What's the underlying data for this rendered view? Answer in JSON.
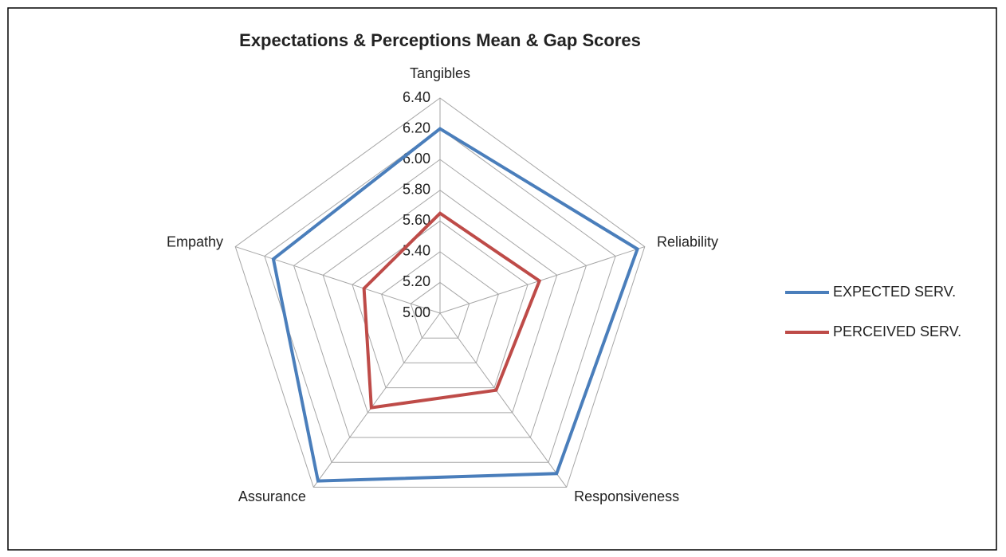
{
  "chart_data": {
    "type": "radar",
    "title": "Expectations & Perceptions Mean & Gap Scores",
    "categories": [
      "Tangibles",
      "Reliability",
      "Responsiveness",
      "Assurance",
      "Empathy"
    ],
    "series": [
      {
        "name": "EXPECTED SERV.",
        "color": "#4a7ebb",
        "values": [
          6.2,
          6.35,
          6.29,
          6.35,
          6.14
        ]
      },
      {
        "name": "PERCEIVED SERV.",
        "color": "#be4b48",
        "values": [
          5.65,
          5.68,
          5.62,
          5.76,
          5.52
        ]
      }
    ],
    "ylim": [
      5,
      6.4
    ],
    "yticks": [
      {
        "value": 5,
        "label": "5.00"
      },
      {
        "value": 5.2,
        "label": "5.20"
      },
      {
        "value": 5.4,
        "label": "5.40"
      },
      {
        "value": 5.6,
        "label": "5.60"
      },
      {
        "value": 5.8,
        "label": "5.80"
      },
      {
        "value": 6,
        "label": "6.00"
      },
      {
        "value": 6.2,
        "label": "6.20"
      },
      {
        "value": 6.4,
        "label": "6.40"
      }
    ],
    "grid": true,
    "legend": "right"
  }
}
